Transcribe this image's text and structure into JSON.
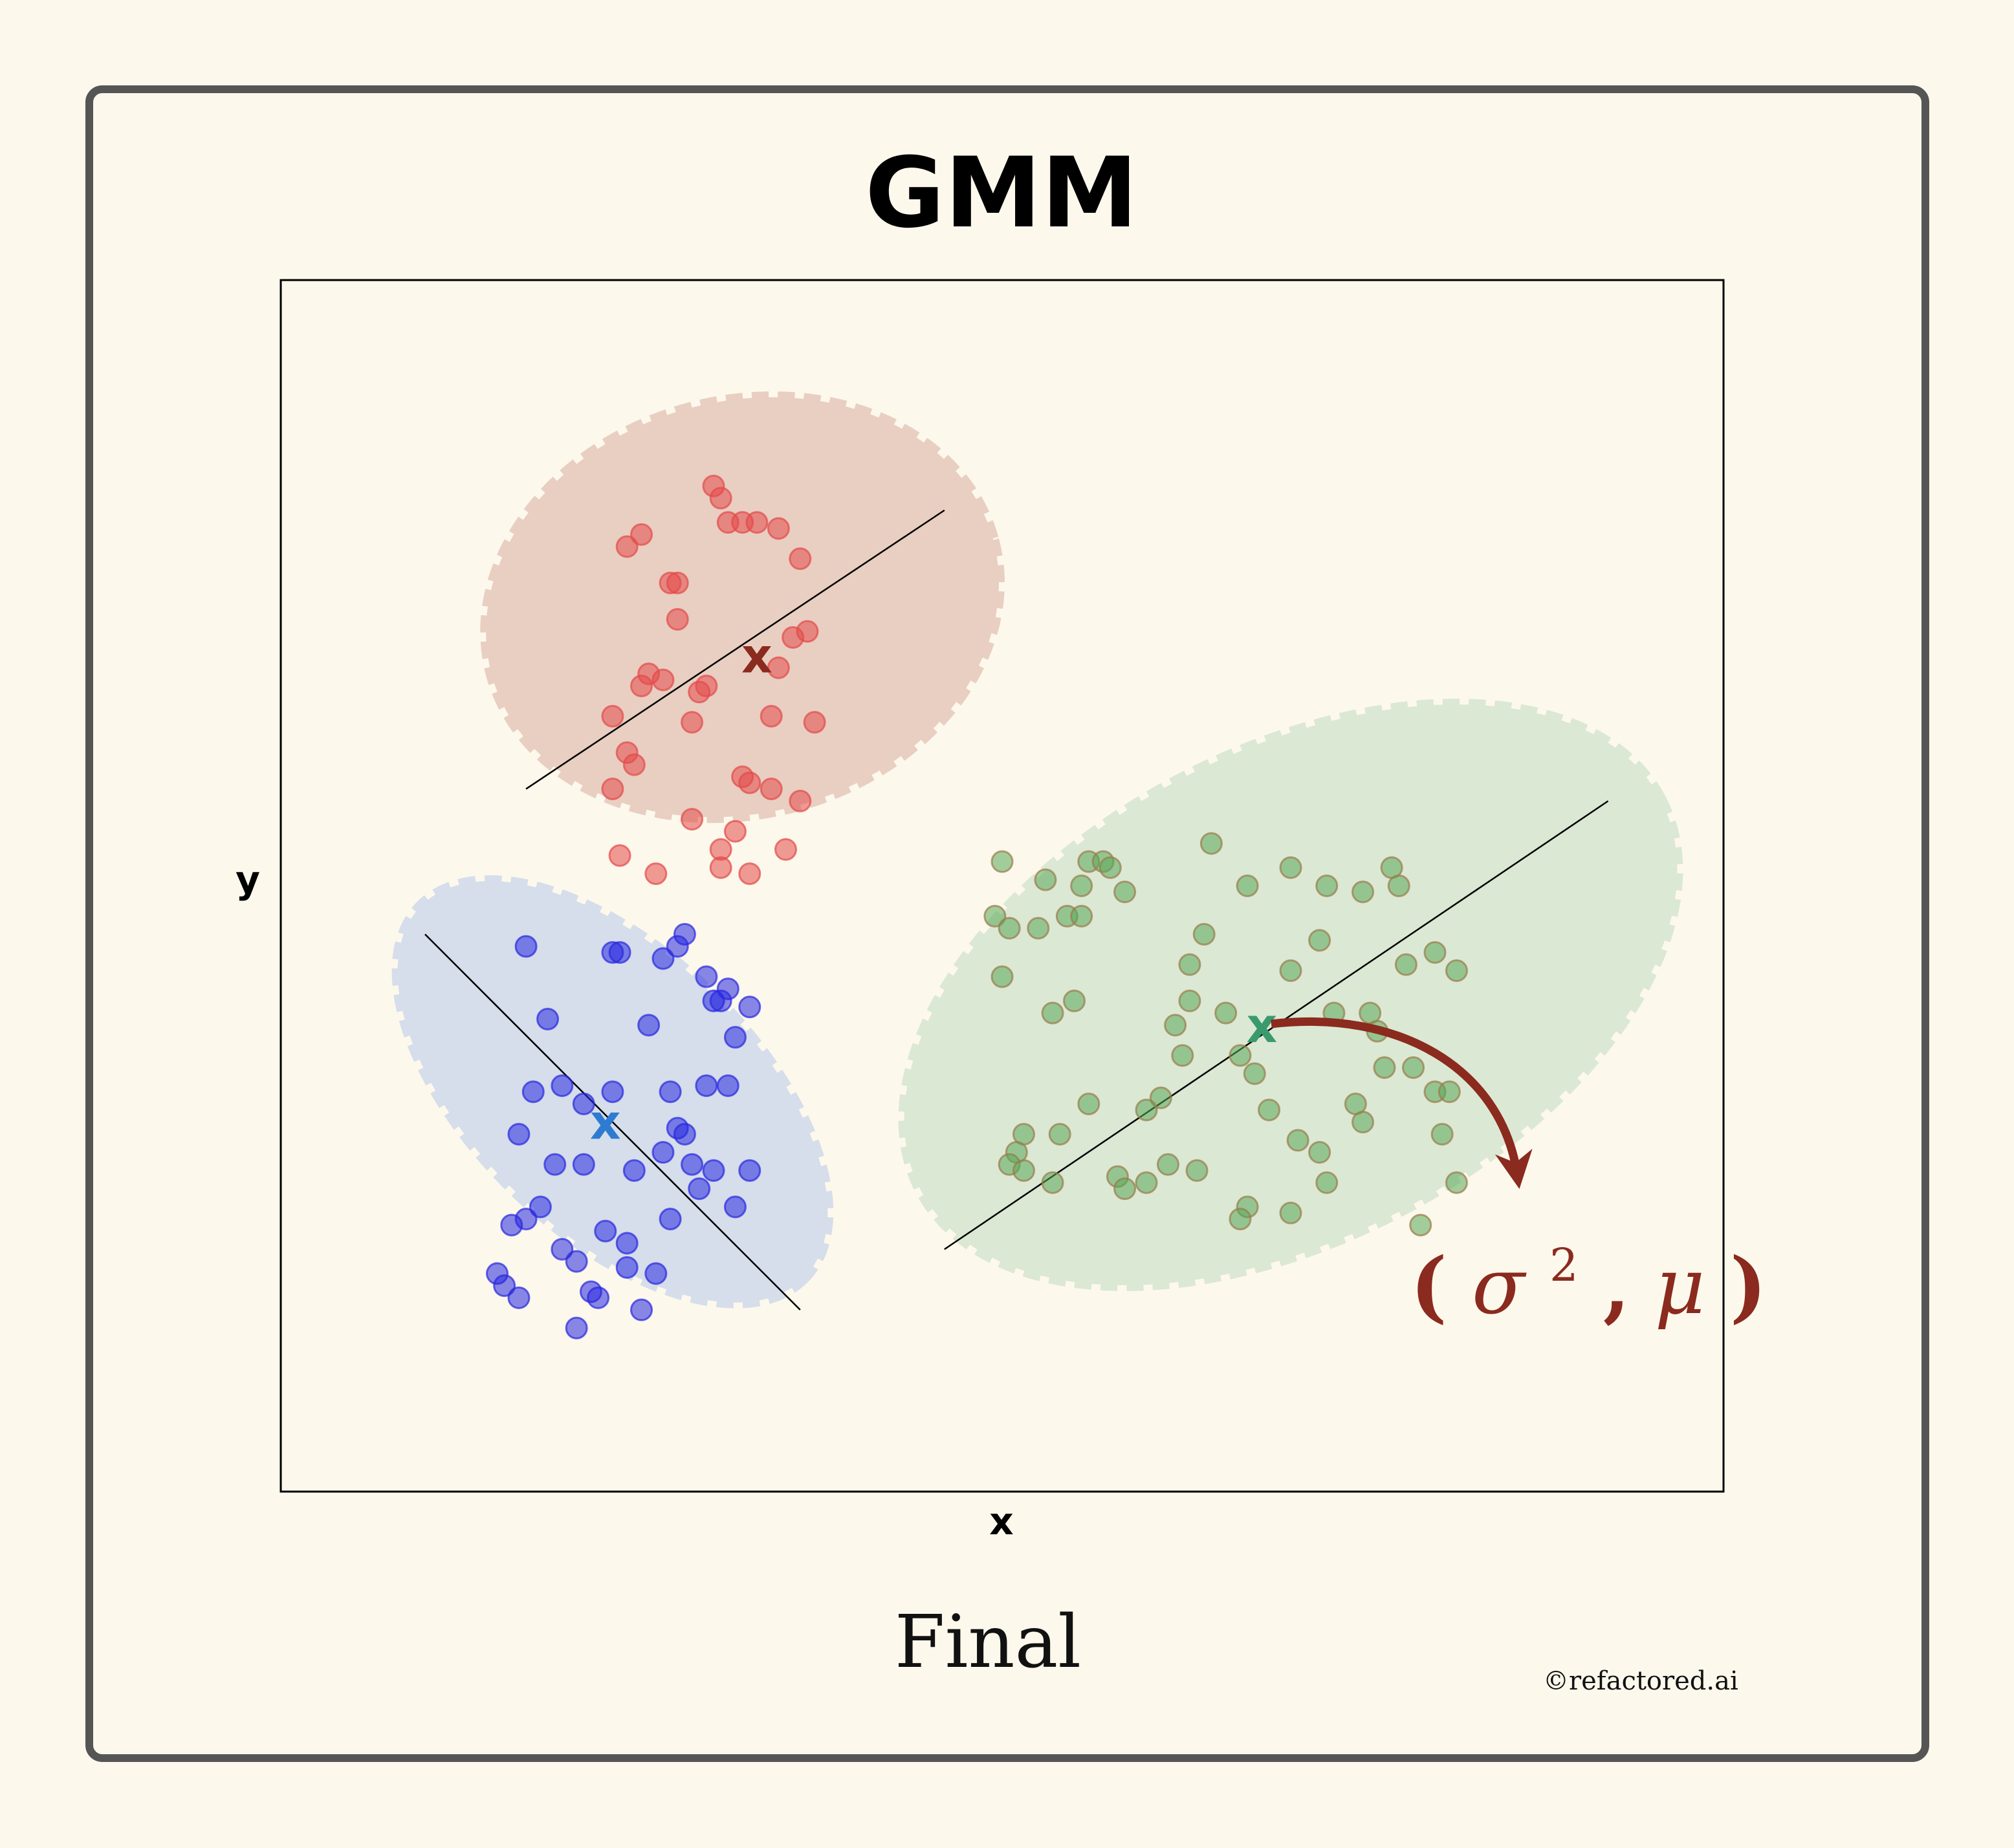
{
  "title": "GMM",
  "caption": "Final",
  "credit": "©refactored.ai",
  "annotation": {
    "open": "(",
    "sigma": "σ",
    "power": "2",
    "sep": ",",
    "mu": "μ",
    "close": ")"
  },
  "centroid_marker": "x",
  "chart_data": {
    "type": "scatter",
    "title": "GMM",
    "xlabel": "x",
    "ylabel": "y",
    "xlim": [
      0,
      10
    ],
    "ylim": [
      0,
      10
    ],
    "grid": false,
    "legend": "none",
    "clusters": [
      {
        "color": "#e34a4a",
        "fill": "#e8cfc2",
        "centroid_color": "#8b2a1e",
        "mean": [
          3.3,
          6.9
        ],
        "axis": [
          [
            1.7,
            5.8
          ],
          [
            4.6,
            8.1
          ]
        ],
        "ellipse": {
          "cx": 3.2,
          "cy": 7.3,
          "rx": 1.8,
          "ry": 1.7,
          "rotate": -15
        },
        "points": [
          [
            3.0,
            8.3
          ],
          [
            3.05,
            8.2
          ],
          [
            3.1,
            8.0
          ],
          [
            3.2,
            8.0
          ],
          [
            3.3,
            8.0
          ],
          [
            3.45,
            7.95
          ],
          [
            2.5,
            7.9
          ],
          [
            2.4,
            7.8
          ],
          [
            3.6,
            7.7
          ],
          [
            2.7,
            7.5
          ],
          [
            2.75,
            7.5
          ],
          [
            2.75,
            7.2
          ],
          [
            3.65,
            7.1
          ],
          [
            3.55,
            7.05
          ],
          [
            3.45,
            6.8
          ],
          [
            2.55,
            6.75
          ],
          [
            2.65,
            6.7
          ],
          [
            2.5,
            6.65
          ],
          [
            2.95,
            6.65
          ],
          [
            2.9,
            6.6
          ],
          [
            2.3,
            6.4
          ],
          [
            2.85,
            6.35
          ],
          [
            3.4,
            6.4
          ],
          [
            3.7,
            6.35
          ],
          [
            2.4,
            6.1
          ],
          [
            2.45,
            6.0
          ],
          [
            3.2,
            5.9
          ],
          [
            3.25,
            5.85
          ],
          [
            3.4,
            5.8
          ],
          [
            3.6,
            5.7
          ],
          [
            2.3,
            5.8
          ],
          [
            2.85,
            5.55
          ],
          [
            3.15,
            5.45
          ],
          [
            3.05,
            5.3
          ],
          [
            2.35,
            5.25
          ],
          [
            3.5,
            5.3
          ],
          [
            3.05,
            5.15
          ],
          [
            2.6,
            5.1
          ],
          [
            3.25,
            5.1
          ]
        ]
      },
      {
        "color": "#2828e0",
        "fill": "#d5deea",
        "centroid_color": "#2e7cd2",
        "mean": [
          2.25,
          3.05
        ],
        "axis": [
          [
            1.0,
            4.6
          ],
          [
            3.6,
            1.5
          ]
        ],
        "ellipse": {
          "cx": 2.3,
          "cy": 3.3,
          "rx": 1.85,
          "ry": 1.15,
          "rotate": 44
        },
        "points": [
          [
            1.7,
            4.5
          ],
          [
            2.3,
            4.45
          ],
          [
            2.35,
            4.45
          ],
          [
            2.65,
            4.4
          ],
          [
            2.75,
            4.5
          ],
          [
            2.8,
            4.6
          ],
          [
            2.95,
            4.25
          ],
          [
            3.1,
            4.15
          ],
          [
            3.05,
            4.05
          ],
          [
            3.0,
            4.05
          ],
          [
            3.25,
            4.0
          ],
          [
            1.85,
            3.9
          ],
          [
            2.55,
            3.85
          ],
          [
            3.15,
            3.75
          ],
          [
            1.75,
            3.3
          ],
          [
            1.95,
            3.35
          ],
          [
            2.1,
            3.2
          ],
          [
            2.3,
            3.3
          ],
          [
            2.7,
            3.3
          ],
          [
            2.95,
            3.35
          ],
          [
            3.1,
            3.35
          ],
          [
            1.65,
            2.95
          ],
          [
            2.75,
            3.0
          ],
          [
            2.8,
            2.95
          ],
          [
            2.65,
            2.8
          ],
          [
            2.85,
            2.7
          ],
          [
            1.9,
            2.7
          ],
          [
            2.1,
            2.7
          ],
          [
            2.45,
            2.65
          ],
          [
            3.0,
            2.65
          ],
          [
            3.25,
            2.65
          ],
          [
            2.9,
            2.5
          ],
          [
            1.8,
            2.35
          ],
          [
            1.7,
            2.25
          ],
          [
            1.6,
            2.2
          ],
          [
            2.7,
            2.25
          ],
          [
            3.15,
            2.35
          ],
          [
            2.25,
            2.15
          ],
          [
            2.4,
            2.05
          ],
          [
            1.95,
            2.0
          ],
          [
            2.05,
            1.9
          ],
          [
            2.4,
            1.85
          ],
          [
            2.6,
            1.8
          ],
          [
            1.5,
            1.8
          ],
          [
            1.55,
            1.7
          ],
          [
            2.15,
            1.65
          ],
          [
            2.2,
            1.6
          ],
          [
            1.65,
            1.6
          ],
          [
            2.5,
            1.5
          ],
          [
            2.05,
            1.35
          ]
        ]
      },
      {
        "color": "#5aa85a",
        "fill": "#dbe8d4",
        "centroid_color": "#3a9a6e",
        "mean": [
          6.8,
          3.85
        ],
        "axis": [
          [
            4.6,
            2.0
          ],
          [
            9.2,
            5.7
          ]
        ],
        "ellipse": {
          "cx": 7.0,
          "cy": 4.1,
          "rx": 2.9,
          "ry": 2.0,
          "rotate": -28
        },
        "points": [
          [
            5.0,
            5.2
          ],
          [
            5.6,
            5.2
          ],
          [
            5.7,
            5.2
          ],
          [
            5.75,
            5.15
          ],
          [
            6.45,
            5.35
          ],
          [
            5.3,
            5.05
          ],
          [
            5.55,
            5.0
          ],
          [
            5.85,
            4.95
          ],
          [
            6.7,
            5.0
          ],
          [
            7.0,
            5.15
          ],
          [
            7.25,
            5.0
          ],
          [
            7.5,
            4.95
          ],
          [
            7.7,
            5.15
          ],
          [
            7.75,
            5.0
          ],
          [
            4.95,
            4.75
          ],
          [
            5.05,
            4.65
          ],
          [
            5.25,
            4.65
          ],
          [
            5.45,
            4.75
          ],
          [
            5.55,
            4.75
          ],
          [
            6.4,
            4.6
          ],
          [
            7.2,
            4.55
          ],
          [
            8.0,
            4.45
          ],
          [
            8.15,
            4.3
          ],
          [
            6.3,
            4.35
          ],
          [
            7.0,
            4.3
          ],
          [
            7.8,
            4.35
          ],
          [
            5.0,
            4.25
          ],
          [
            5.35,
            3.95
          ],
          [
            5.5,
            4.05
          ],
          [
            6.3,
            4.05
          ],
          [
            6.55,
            3.95
          ],
          [
            7.3,
            3.95
          ],
          [
            7.55,
            3.95
          ],
          [
            7.6,
            3.8
          ],
          [
            6.2,
            3.85
          ],
          [
            6.25,
            3.6
          ],
          [
            6.65,
            3.6
          ],
          [
            6.75,
            3.45
          ],
          [
            7.65,
            3.5
          ],
          [
            7.85,
            3.5
          ],
          [
            8.0,
            3.3
          ],
          [
            8.1,
            3.3
          ],
          [
            6.1,
            3.25
          ],
          [
            5.6,
            3.2
          ],
          [
            6.0,
            3.15
          ],
          [
            6.85,
            3.15
          ],
          [
            7.45,
            3.2
          ],
          [
            7.5,
            3.05
          ],
          [
            5.15,
            2.95
          ],
          [
            5.4,
            2.95
          ],
          [
            7.05,
            2.9
          ],
          [
            8.05,
            2.95
          ],
          [
            5.1,
            2.8
          ],
          [
            5.05,
            2.7
          ],
          [
            5.15,
            2.65
          ],
          [
            5.8,
            2.6
          ],
          [
            6.15,
            2.7
          ],
          [
            6.35,
            2.65
          ],
          [
            7.2,
            2.8
          ],
          [
            7.25,
            2.55
          ],
          [
            5.35,
            2.55
          ],
          [
            5.85,
            2.5
          ],
          [
            6.0,
            2.55
          ],
          [
            8.15,
            2.55
          ],
          [
            6.7,
            2.35
          ],
          [
            6.65,
            2.25
          ],
          [
            7.0,
            2.3
          ],
          [
            7.9,
            2.2
          ]
        ]
      }
    ]
  }
}
